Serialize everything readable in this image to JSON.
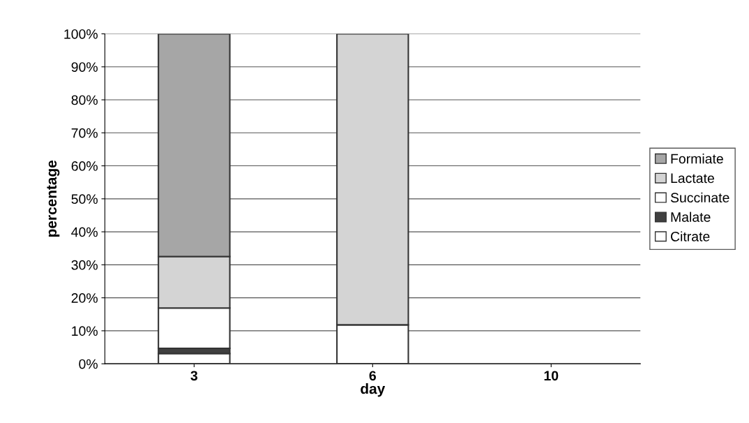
{
  "chart_data": {
    "type": "bar",
    "stacked": true,
    "xlabel": "day",
    "ylabel": "percentage",
    "categories": [
      "3",
      "6",
      "10"
    ],
    "series": [
      {
        "name": "Citrate",
        "color": "#ffffff",
        "values": [
          3.1,
          0,
          null
        ]
      },
      {
        "name": "Malate",
        "color": "#404040",
        "values": [
          1.6,
          0,
          null
        ]
      },
      {
        "name": "Succinate",
        "color": "#ffffff",
        "values": [
          12.2,
          11.8,
          null
        ]
      },
      {
        "name": "Lactate",
        "color": "#d4d4d4",
        "values": [
          15.6,
          88.2,
          null
        ]
      },
      {
        "name": "Formiate",
        "color": "#a6a6a6",
        "values": [
          67.5,
          0,
          null
        ]
      }
    ],
    "ylim": [
      0,
      100
    ],
    "yticks": [
      {
        "value": 0,
        "label": "0%"
      },
      {
        "value": 10,
        "label": "10%"
      },
      {
        "value": 20,
        "label": "20%"
      },
      {
        "value": 30,
        "label": "30%"
      },
      {
        "value": 40,
        "label": "40%"
      },
      {
        "value": 50,
        "label": "50%"
      },
      {
        "value": 60,
        "label": "60%"
      },
      {
        "value": 70,
        "label": "70%"
      },
      {
        "value": 80,
        "label": "80%"
      },
      {
        "value": 90,
        "label": "90%"
      },
      {
        "value": 100,
        "label": "100%"
      }
    ],
    "grid": "y",
    "legend": "right"
  }
}
